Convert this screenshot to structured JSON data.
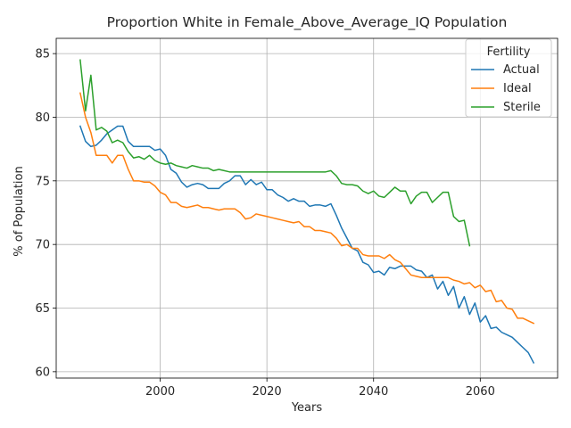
{
  "chart_data": {
    "type": "line",
    "title": "Proportion White in Female_Above_Average_IQ Population",
    "xlabel": "Years",
    "ylabel": "% of Population",
    "xlim": [
      1980.5,
      2074.5
    ],
    "ylim": [
      59.5,
      86.2
    ],
    "xticks": [
      2000,
      2020,
      2040,
      2060
    ],
    "yticks": [
      60,
      65,
      70,
      75,
      80,
      85
    ],
    "grid": true,
    "legend": {
      "title": "Fertility",
      "placement": "top-right"
    },
    "series": [
      {
        "name": "Actual",
        "color": "#1f77b4",
        "x": [
          1985,
          1986,
          1987,
          1988,
          1989,
          1990,
          1991,
          1992,
          1993,
          1994,
          1995,
          1996,
          1997,
          1998,
          1999,
          2000,
          2001,
          2002,
          2003,
          2004,
          2005,
          2006,
          2007,
          2008,
          2009,
          2010,
          2011,
          2012,
          2013,
          2014,
          2015,
          2016,
          2017,
          2018,
          2019,
          2020,
          2021,
          2022,
          2023,
          2024,
          2025,
          2026,
          2027,
          2028,
          2029,
          2030,
          2031,
          2032,
          2033,
          2034,
          2035,
          2036,
          2037,
          2038,
          2039,
          2040,
          2041,
          2042,
          2043,
          2044,
          2045,
          2046,
          2047,
          2048,
          2049,
          2050,
          2051,
          2052,
          2053,
          2054,
          2055,
          2056,
          2057,
          2058,
          2059,
          2060,
          2061,
          2062,
          2063,
          2064,
          2065,
          2066,
          2067,
          2068,
          2069,
          2070
        ],
        "y": [
          79.3,
          78.1,
          77.7,
          77.8,
          78.2,
          78.7,
          79.0,
          79.3,
          79.3,
          78.1,
          77.7,
          77.7,
          77.7,
          77.7,
          77.4,
          77.5,
          77.0,
          75.9,
          75.6,
          74.9,
          74.5,
          74.7,
          74.8,
          74.7,
          74.4,
          74.4,
          74.4,
          74.8,
          75.0,
          75.4,
          75.4,
          74.7,
          75.1,
          74.7,
          74.9,
          74.3,
          74.3,
          73.9,
          73.7,
          73.4,
          73.6,
          73.4,
          73.4,
          73.0,
          73.1,
          73.1,
          73.0,
          73.2,
          72.3,
          71.3,
          70.5,
          69.7,
          69.5,
          68.6,
          68.4,
          67.8,
          67.9,
          67.6,
          68.2,
          68.1,
          68.3,
          68.3,
          68.3,
          68.0,
          67.9,
          67.4,
          67.6,
          66.5,
          67.1,
          66.0,
          66.7,
          65.0,
          65.9,
          64.5,
          65.4,
          63.9,
          64.4,
          63.4,
          63.5,
          63.1,
          62.9,
          62.7,
          62.3,
          61.9,
          61.5,
          60.7
        ]
      },
      {
        "name": "Ideal",
        "color": "#ff7f0e",
        "x": [
          1985,
          1986,
          1987,
          1988,
          1989,
          1990,
          1991,
          1992,
          1993,
          1994,
          1995,
          1996,
          1997,
          1998,
          1999,
          2000,
          2001,
          2002,
          2003,
          2004,
          2005,
          2006,
          2007,
          2008,
          2009,
          2010,
          2011,
          2012,
          2013,
          2014,
          2015,
          2016,
          2017,
          2018,
          2019,
          2020,
          2021,
          2022,
          2023,
          2024,
          2025,
          2026,
          2027,
          2028,
          2029,
          2030,
          2031,
          2032,
          2033,
          2034,
          2035,
          2036,
          2037,
          2038,
          2039,
          2040,
          2041,
          2042,
          2043,
          2044,
          2045,
          2046,
          2047,
          2048,
          2049,
          2050,
          2051,
          2052,
          2053,
          2054,
          2055,
          2056,
          2057,
          2058,
          2059,
          2060,
          2061,
          2062,
          2063,
          2064,
          2065,
          2066,
          2067,
          2068,
          2069,
          2070
        ],
        "y": [
          81.9,
          80.0,
          78.8,
          77.0,
          77.0,
          77.0,
          76.4,
          77.0,
          77.0,
          75.9,
          75.0,
          75.0,
          74.9,
          74.9,
          74.6,
          74.1,
          73.9,
          73.3,
          73.3,
          73.0,
          72.9,
          73.0,
          73.1,
          72.9,
          72.9,
          72.8,
          72.7,
          72.8,
          72.8,
          72.8,
          72.5,
          72.0,
          72.1,
          72.4,
          72.3,
          72.2,
          72.1,
          72.0,
          71.9,
          71.8,
          71.7,
          71.8,
          71.4,
          71.4,
          71.1,
          71.1,
          71.0,
          70.9,
          70.5,
          69.9,
          70.0,
          69.7,
          69.7,
          69.2,
          69.1,
          69.1,
          69.1,
          68.9,
          69.2,
          68.8,
          68.6,
          68.1,
          67.6,
          67.5,
          67.4,
          67.4,
          67.4,
          67.4,
          67.4,
          67.4,
          67.2,
          67.1,
          66.9,
          67.0,
          66.6,
          66.8,
          66.3,
          66.4,
          65.5,
          65.6,
          65.0,
          64.9,
          64.2,
          64.2,
          64.0,
          63.8
        ]
      },
      {
        "name": "Sterile",
        "color": "#2ca02c",
        "x": [
          1985,
          1986,
          1987,
          1988,
          1989,
          1990,
          1991,
          1992,
          1993,
          1994,
          1995,
          1996,
          1997,
          1998,
          1999,
          2000,
          2001,
          2002,
          2003,
          2004,
          2005,
          2006,
          2007,
          2008,
          2009,
          2010,
          2011,
          2012,
          2013,
          2014,
          2015,
          2016,
          2017,
          2018,
          2019,
          2020,
          2021,
          2022,
          2023,
          2024,
          2025,
          2026,
          2027,
          2028,
          2029,
          2030,
          2031,
          2032,
          2033,
          2034,
          2035,
          2036,
          2037,
          2038,
          2039,
          2040,
          2041,
          2042,
          2043,
          2044,
          2045,
          2046,
          2047,
          2048,
          2049,
          2050,
          2051,
          2052,
          2053,
          2054,
          2055,
          2056,
          2057,
          2058
        ],
        "y": [
          84.5,
          80.5,
          83.3,
          79.0,
          79.2,
          78.9,
          78.0,
          78.2,
          78.0,
          77.3,
          76.8,
          76.9,
          76.7,
          77.0,
          76.6,
          76.4,
          76.3,
          76.4,
          76.2,
          76.1,
          76.0,
          76.2,
          76.1,
          76.0,
          76.0,
          75.8,
          75.9,
          75.8,
          75.7,
          75.7,
          75.7,
          75.7,
          75.7,
          75.7,
          75.7,
          75.7,
          75.7,
          75.7,
          75.7,
          75.7,
          75.7,
          75.7,
          75.7,
          75.7,
          75.7,
          75.7,
          75.7,
          75.8,
          75.4,
          74.8,
          74.7,
          74.7,
          74.6,
          74.2,
          74.0,
          74.2,
          73.8,
          73.7,
          74.1,
          74.5,
          74.2,
          74.2,
          73.2,
          73.8,
          74.1,
          74.1,
          73.3,
          73.7,
          74.1,
          74.1,
          72.2,
          71.8,
          71.9,
          69.9
        ]
      }
    ]
  }
}
